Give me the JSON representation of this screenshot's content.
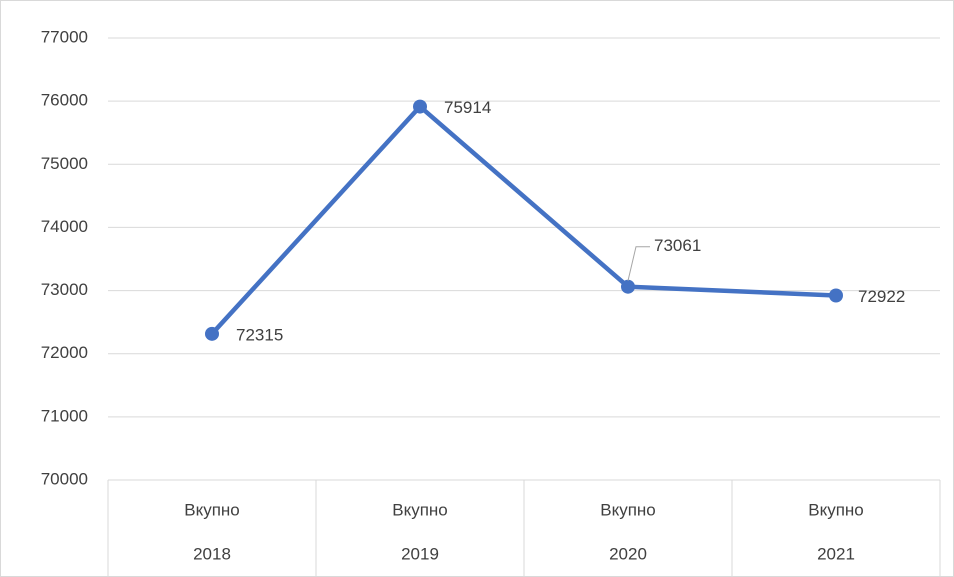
{
  "chart_data": {
    "type": "line",
    "categories": [
      "2018",
      "2019",
      "2020",
      "2021"
    ],
    "subcategories": [
      "Вкупно",
      "Вкупно",
      "Вкупно",
      "Вкупно"
    ],
    "series": [
      {
        "name": "Вкупно",
        "color": "#4472c4",
        "values": [
          72315,
          75914,
          73061,
          72922
        ]
      }
    ],
    "ylim": [
      70000,
      77000
    ],
    "yticks": [
      70000,
      71000,
      72000,
      73000,
      74000,
      75000,
      76000,
      77000
    ],
    "grid": true,
    "data_labels": true
  }
}
